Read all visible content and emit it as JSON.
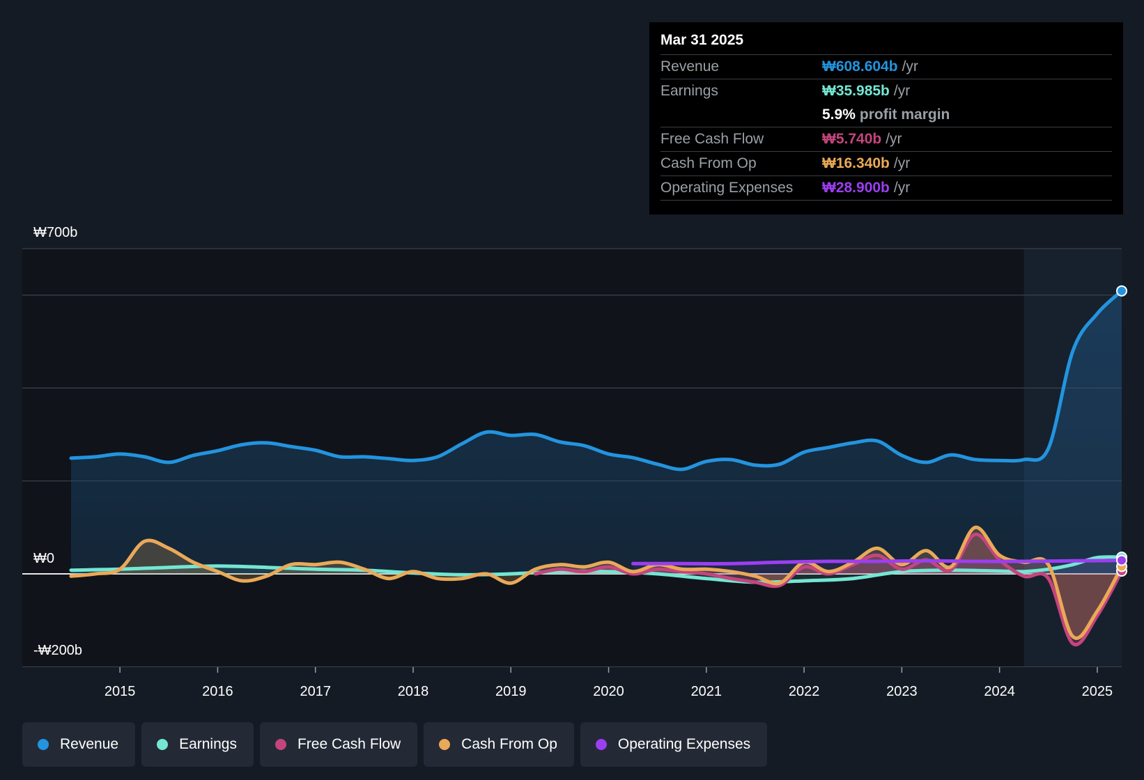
{
  "tooltip": {
    "date": "Mar 31 2025",
    "rows": [
      {
        "label": "Revenue",
        "value": "₩608.604b",
        "unit": "/yr",
        "color": "#2394df"
      },
      {
        "label": "Earnings",
        "value": "₩35.985b",
        "unit": "/yr",
        "color": "#74e6d3"
      },
      {
        "label": "",
        "value": "5.9%",
        "unit": "profit margin",
        "color": "#ffffff"
      },
      {
        "label": "Free Cash Flow",
        "value": "₩5.740b",
        "unit": "/yr",
        "color": "#c4457e"
      },
      {
        "label": "Cash From Op",
        "value": "₩16.340b",
        "unit": "/yr",
        "color": "#eaa958"
      },
      {
        "label": "Operating Expenses",
        "value": "₩28.900b",
        "unit": "/yr",
        "color": "#9b3ff0"
      }
    ]
  },
  "legend": [
    {
      "label": "Revenue",
      "color": "#2394df"
    },
    {
      "label": "Earnings",
      "color": "#74e6d3"
    },
    {
      "label": "Free Cash Flow",
      "color": "#c4457e"
    },
    {
      "label": "Cash From Op",
      "color": "#eaa958"
    },
    {
      "label": "Operating Expenses",
      "color": "#9b3ff0"
    }
  ],
  "chart_data": {
    "type": "line",
    "title": "",
    "xlabel": "",
    "ylabel": "",
    "y_axis_labels": [
      "₩700b",
      "₩0",
      "-₩200b"
    ],
    "ylim": [
      -200,
      700
    ],
    "y_gridlines": [
      -200,
      0,
      200,
      400,
      600,
      700
    ],
    "xlim": [
      2014.45,
      2025.25
    ],
    "x_ticks": [
      2015,
      2016,
      2017,
      2018,
      2019,
      2020,
      2021,
      2022,
      2023,
      2024,
      2025
    ],
    "forecast_shade_start": 2024.25,
    "series": [
      {
        "name": "Revenue",
        "color": "#2394df",
        "points": [
          [
            2014.5,
            249
          ],
          [
            2014.75,
            252
          ],
          [
            2015.0,
            258
          ],
          [
            2015.25,
            252
          ],
          [
            2015.5,
            240
          ],
          [
            2015.75,
            255
          ],
          [
            2016.0,
            265
          ],
          [
            2016.25,
            278
          ],
          [
            2016.5,
            282
          ],
          [
            2016.75,
            274
          ],
          [
            2017.0,
            266
          ],
          [
            2017.25,
            252
          ],
          [
            2017.5,
            252
          ],
          [
            2017.75,
            248
          ],
          [
            2018.0,
            244
          ],
          [
            2018.25,
            252
          ],
          [
            2018.5,
            280
          ],
          [
            2018.75,
            305
          ],
          [
            2019.0,
            298
          ],
          [
            2019.25,
            300
          ],
          [
            2019.5,
            284
          ],
          [
            2019.75,
            276
          ],
          [
            2020.0,
            258
          ],
          [
            2020.25,
            250
          ],
          [
            2020.5,
            236
          ],
          [
            2020.75,
            225
          ],
          [
            2021.0,
            242
          ],
          [
            2021.25,
            246
          ],
          [
            2021.5,
            234
          ],
          [
            2021.75,
            236
          ],
          [
            2022.0,
            262
          ],
          [
            2022.25,
            272
          ],
          [
            2022.5,
            282
          ],
          [
            2022.75,
            286
          ],
          [
            2023.0,
            255
          ],
          [
            2023.25,
            240
          ],
          [
            2023.5,
            256
          ],
          [
            2023.75,
            246
          ],
          [
            2024.0,
            244
          ],
          [
            2024.25,
            246
          ],
          [
            2024.5,
            270
          ],
          [
            2024.75,
            480
          ],
          [
            2025.0,
            560
          ],
          [
            2025.25,
            609
          ]
        ]
      },
      {
        "name": "Earnings",
        "color": "#74e6d3",
        "points": [
          [
            2014.5,
            8
          ],
          [
            2015.0,
            10
          ],
          [
            2015.5,
            14
          ],
          [
            2016.0,
            17
          ],
          [
            2016.5,
            14
          ],
          [
            2017.0,
            10
          ],
          [
            2017.5,
            8
          ],
          [
            2018.0,
            2
          ],
          [
            2018.5,
            -2
          ],
          [
            2019.0,
            0
          ],
          [
            2019.5,
            5
          ],
          [
            2020.0,
            5
          ],
          [
            2020.5,
            0
          ],
          [
            2021.0,
            -10
          ],
          [
            2021.5,
            -18
          ],
          [
            2022.0,
            -15
          ],
          [
            2022.5,
            -10
          ],
          [
            2023.0,
            5
          ],
          [
            2023.5,
            8
          ],
          [
            2024.0,
            6
          ],
          [
            2024.25,
            5
          ],
          [
            2024.5,
            10
          ],
          [
            2024.75,
            20
          ],
          [
            2025.0,
            35
          ],
          [
            2025.25,
            36
          ]
        ]
      },
      {
        "name": "Free Cash Flow",
        "color": "#c4457e",
        "points": [
          [
            2019.25,
            0
          ],
          [
            2019.5,
            10
          ],
          [
            2019.75,
            5
          ],
          [
            2020.0,
            15
          ],
          [
            2020.25,
            0
          ],
          [
            2020.5,
            10
          ],
          [
            2020.75,
            5
          ],
          [
            2021.0,
            0
          ],
          [
            2021.25,
            -10
          ],
          [
            2021.5,
            -18
          ],
          [
            2021.75,
            -25
          ],
          [
            2022.0,
            15
          ],
          [
            2022.25,
            0
          ],
          [
            2022.5,
            20
          ],
          [
            2022.75,
            40
          ],
          [
            2023.0,
            10
          ],
          [
            2023.25,
            30
          ],
          [
            2023.5,
            8
          ],
          [
            2023.75,
            85
          ],
          [
            2024.0,
            30
          ],
          [
            2024.25,
            -5
          ],
          [
            2024.5,
            -10
          ],
          [
            2024.75,
            -150
          ],
          [
            2025.0,
            -90
          ],
          [
            2025.25,
            6
          ]
        ]
      },
      {
        "name": "Cash From Op",
        "color": "#eaa958",
        "points": [
          [
            2014.5,
            -5
          ],
          [
            2014.75,
            0
          ],
          [
            2015.0,
            10
          ],
          [
            2015.25,
            70
          ],
          [
            2015.5,
            55
          ],
          [
            2015.75,
            25
          ],
          [
            2016.0,
            5
          ],
          [
            2016.25,
            -15
          ],
          [
            2016.5,
            -5
          ],
          [
            2016.75,
            20
          ],
          [
            2017.0,
            20
          ],
          [
            2017.25,
            25
          ],
          [
            2017.5,
            10
          ],
          [
            2017.75,
            -10
          ],
          [
            2018.0,
            5
          ],
          [
            2018.25,
            -10
          ],
          [
            2018.5,
            -10
          ],
          [
            2018.75,
            0
          ],
          [
            2019.0,
            -20
          ],
          [
            2019.25,
            10
          ],
          [
            2019.5,
            20
          ],
          [
            2019.75,
            15
          ],
          [
            2020.0,
            25
          ],
          [
            2020.25,
            5
          ],
          [
            2020.5,
            20
          ],
          [
            2020.75,
            10
          ],
          [
            2021.0,
            10
          ],
          [
            2021.25,
            5
          ],
          [
            2021.5,
            -5
          ],
          [
            2021.75,
            -20
          ],
          [
            2022.0,
            25
          ],
          [
            2022.25,
            5
          ],
          [
            2022.5,
            25
          ],
          [
            2022.75,
            55
          ],
          [
            2023.0,
            20
          ],
          [
            2023.25,
            50
          ],
          [
            2023.5,
            15
          ],
          [
            2023.75,
            100
          ],
          [
            2024.0,
            40
          ],
          [
            2024.25,
            25
          ],
          [
            2024.5,
            20
          ],
          [
            2024.75,
            -135
          ],
          [
            2025.0,
            -80
          ],
          [
            2025.25,
            16
          ]
        ]
      },
      {
        "name": "Operating Expenses",
        "color": "#9b3ff0",
        "points": [
          [
            2020.25,
            22
          ],
          [
            2020.75,
            22
          ],
          [
            2021.25,
            22
          ],
          [
            2021.75,
            25
          ],
          [
            2022.25,
            27
          ],
          [
            2022.75,
            27
          ],
          [
            2023.25,
            28
          ],
          [
            2023.75,
            27
          ],
          [
            2024.25,
            27
          ],
          [
            2024.75,
            28
          ],
          [
            2025.25,
            29
          ]
        ]
      }
    ]
  }
}
